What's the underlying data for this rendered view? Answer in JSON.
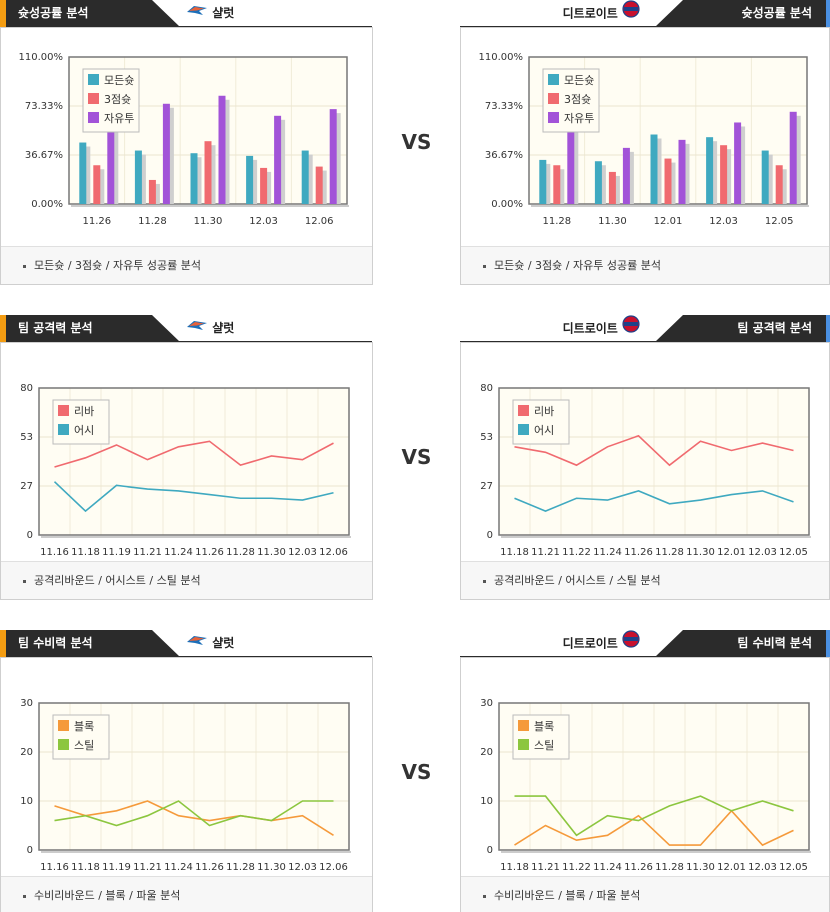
{
  "teams": {
    "left": "샬럿",
    "right": "디트로이트"
  },
  "vs_label": "VS",
  "sections": [
    {
      "title": "슛성공률 분석",
      "caption": "모든슛 / 3점슛 / 자유투 성공률 분석",
      "colors": [
        "#3fa9c0",
        "#f06a6f",
        "#a253d8"
      ],
      "charts": [
        {
          "chart_data": {
            "type": "bar",
            "title": "",
            "yticks": [
              "0.00%",
              "36.67%",
              "73.33%",
              "110.00%"
            ],
            "ylim": [
              0,
              110
            ],
            "categories": [
              "11.26",
              "11.28",
              "11.30",
              "12.03",
              "12.06"
            ],
            "series": [
              {
                "name": "모든슛",
                "values": [
                  46,
                  40,
                  38,
                  36,
                  40
                ]
              },
              {
                "name": "3점슛",
                "values": [
                  29,
                  18,
                  47,
                  27,
                  28
                ]
              },
              {
                "name": "자유투",
                "values": [
                  62,
                  75,
                  81,
                  66,
                  71
                ]
              }
            ]
          }
        },
        {
          "chart_data": {
            "type": "bar",
            "title": "",
            "yticks": [
              "0.00%",
              "36.67%",
              "73.33%",
              "110.00%"
            ],
            "ylim": [
              0,
              110
            ],
            "categories": [
              "11.28",
              "11.30",
              "12.01",
              "12.03",
              "12.05"
            ],
            "series": [
              {
                "name": "모든슛",
                "values": [
                  33,
                  32,
                  52,
                  50,
                  40
                ]
              },
              {
                "name": "3점슛",
                "values": [
                  29,
                  24,
                  34,
                  44,
                  29
                ]
              },
              {
                "name": "자유투",
                "values": [
                  58,
                  42,
                  48,
                  61,
                  69
                ]
              }
            ]
          }
        }
      ]
    },
    {
      "title": "팀 공격력 분석",
      "caption": "공격리바운드 / 어시스트 / 스틸 분석",
      "colors": [
        "#f06a6f",
        "#3fa9c0"
      ],
      "charts": [
        {
          "chart_data": {
            "type": "line",
            "title": "",
            "yticks": [
              "0",
              "27",
              "53",
              "80"
            ],
            "ylim": [
              0,
              80
            ],
            "categories": [
              "11.16",
              "11.18",
              "11.19",
              "11.21",
              "11.24",
              "11.26",
              "11.28",
              "11.30",
              "12.03",
              "12.06"
            ],
            "series": [
              {
                "name": "리바",
                "values": [
                  37,
                  42,
                  49,
                  41,
                  48,
                  51,
                  38,
                  43,
                  41,
                  50
                ]
              },
              {
                "name": "어시",
                "values": [
                  29,
                  13,
                  27,
                  25,
                  24,
                  22,
                  20,
                  20,
                  19,
                  23
                ]
              }
            ]
          }
        },
        {
          "chart_data": {
            "type": "line",
            "title": "",
            "yticks": [
              "0",
              "27",
              "53",
              "80"
            ],
            "ylim": [
              0,
              80
            ],
            "categories": [
              "11.18",
              "11.21",
              "11.22",
              "11.24",
              "11.26",
              "11.28",
              "11.30",
              "12.01",
              "12.03",
              "12.05"
            ],
            "series": [
              {
                "name": "리바",
                "values": [
                  48,
                  45,
                  38,
                  48,
                  54,
                  38,
                  51,
                  46,
                  50,
                  46
                ]
              },
              {
                "name": "어시",
                "values": [
                  20,
                  13,
                  20,
                  19,
                  24,
                  17,
                  19,
                  22,
                  24,
                  18
                ]
              }
            ]
          }
        }
      ]
    },
    {
      "title": "팀 수비력 분석",
      "caption": "수비리바운드 / 블록 / 파울 분석",
      "colors": [
        "#f59a3b",
        "#8cc63f"
      ],
      "charts": [
        {
          "chart_data": {
            "type": "line",
            "title": "",
            "yticks": [
              "0",
              "10",
              "20",
              "30"
            ],
            "ylim": [
              0,
              30
            ],
            "categories": [
              "11.16",
              "11.18",
              "11.19",
              "11.21",
              "11.24",
              "11.26",
              "11.28",
              "11.30",
              "12.03",
              "12.06"
            ],
            "series": [
              {
                "name": "블록",
                "values": [
                  9,
                  7,
                  8,
                  10,
                  7,
                  6,
                  7,
                  6,
                  7,
                  3
                ]
              },
              {
                "name": "스틸",
                "values": [
                  6,
                  7,
                  5,
                  7,
                  10,
                  5,
                  7,
                  6,
                  10,
                  10
                ]
              }
            ]
          }
        },
        {
          "chart_data": {
            "type": "line",
            "title": "",
            "yticks": [
              "0",
              "10",
              "20",
              "30"
            ],
            "ylim": [
              0,
              30
            ],
            "categories": [
              "11.18",
              "11.21",
              "11.22",
              "11.24",
              "11.26",
              "11.28",
              "11.30",
              "12.01",
              "12.03",
              "12.05"
            ],
            "series": [
              {
                "name": "블록",
                "values": [
                  1,
                  5,
                  2,
                  3,
                  7,
                  1,
                  1,
                  8,
                  1,
                  4
                ]
              },
              {
                "name": "스틸",
                "values": [
                  11,
                  11,
                  3,
                  7,
                  6,
                  9,
                  11,
                  8,
                  10,
                  8
                ]
              }
            ]
          }
        }
      ]
    }
  ]
}
